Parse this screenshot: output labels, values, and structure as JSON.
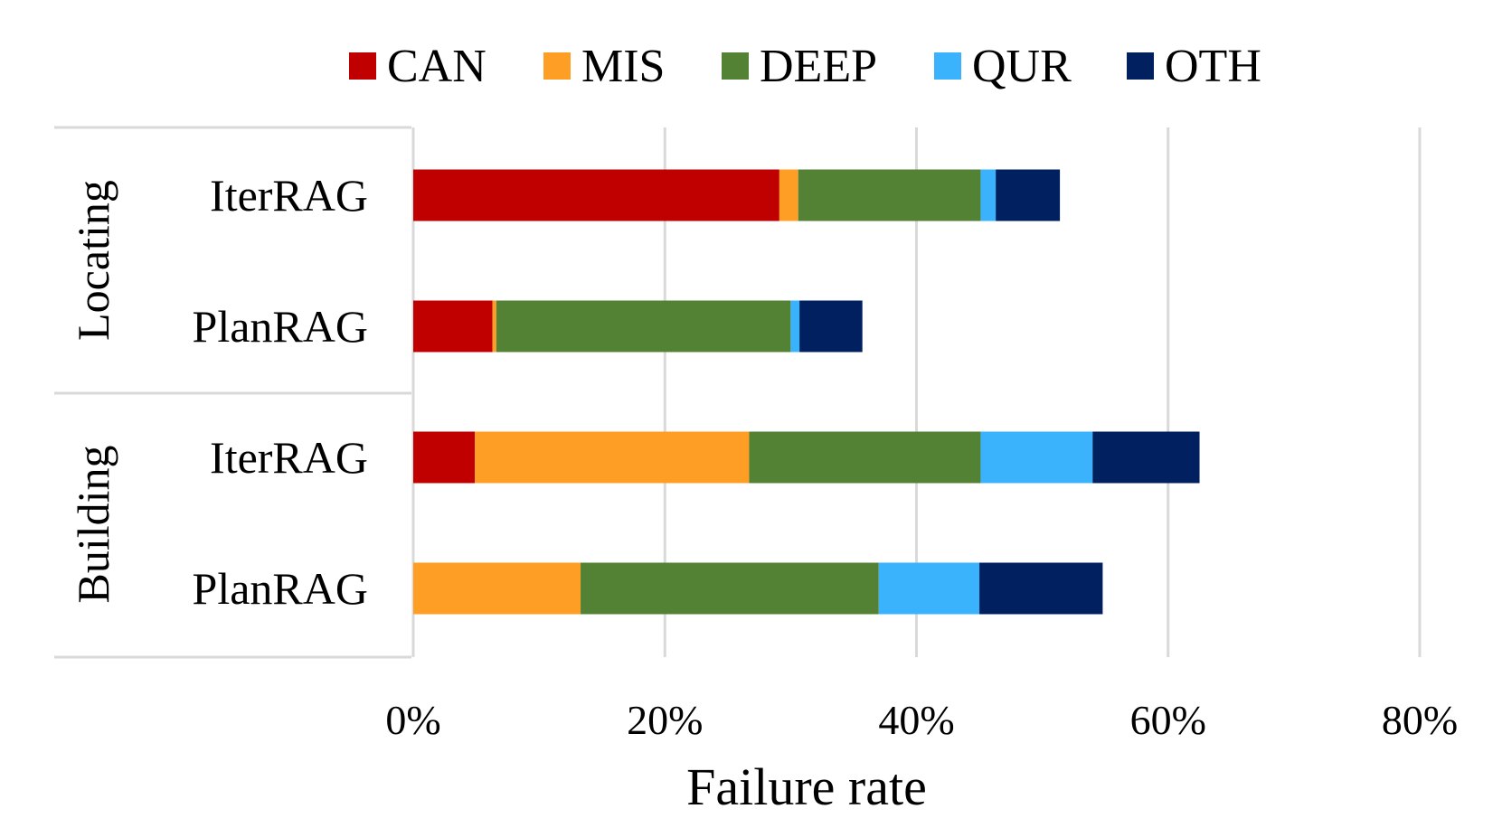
{
  "chart_data": {
    "type": "bar",
    "orientation": "horizontal",
    "stacked": true,
    "xlabel": "Failure rate",
    "xlim": [
      0,
      80
    ],
    "x_ticks": [
      "0%",
      "20%",
      "40%",
      "60%",
      "80%"
    ],
    "grid": true,
    "legend_position": "top",
    "groups": [
      {
        "label": "Locating",
        "categories": [
          "IterRAG",
          "PlanRAG"
        ]
      },
      {
        "label": "Building",
        "categories": [
          "IterRAG",
          "PlanRAG"
        ]
      }
    ],
    "categories": [
      "IterRAG",
      "PlanRAG",
      "IterRAG",
      "PlanRAG"
    ],
    "series": [
      {
        "name": "CAN",
        "color": "#c00000",
        "values": [
          29.1,
          6.3,
          4.9,
          0.0
        ]
      },
      {
        "name": "MIS",
        "color": "#ff9e24",
        "values": [
          1.5,
          0.3,
          21.8,
          13.3
        ]
      },
      {
        "name": "DEEP",
        "color": "#548235",
        "values": [
          14.5,
          23.4,
          18.4,
          23.7
        ]
      },
      {
        "name": "QUR",
        "color": "#3bb3fc",
        "values": [
          1.2,
          0.7,
          8.9,
          8.0
        ]
      },
      {
        "name": "OTH",
        "color": "#002060",
        "values": [
          5.1,
          5.0,
          8.5,
          9.8
        ]
      }
    ]
  }
}
